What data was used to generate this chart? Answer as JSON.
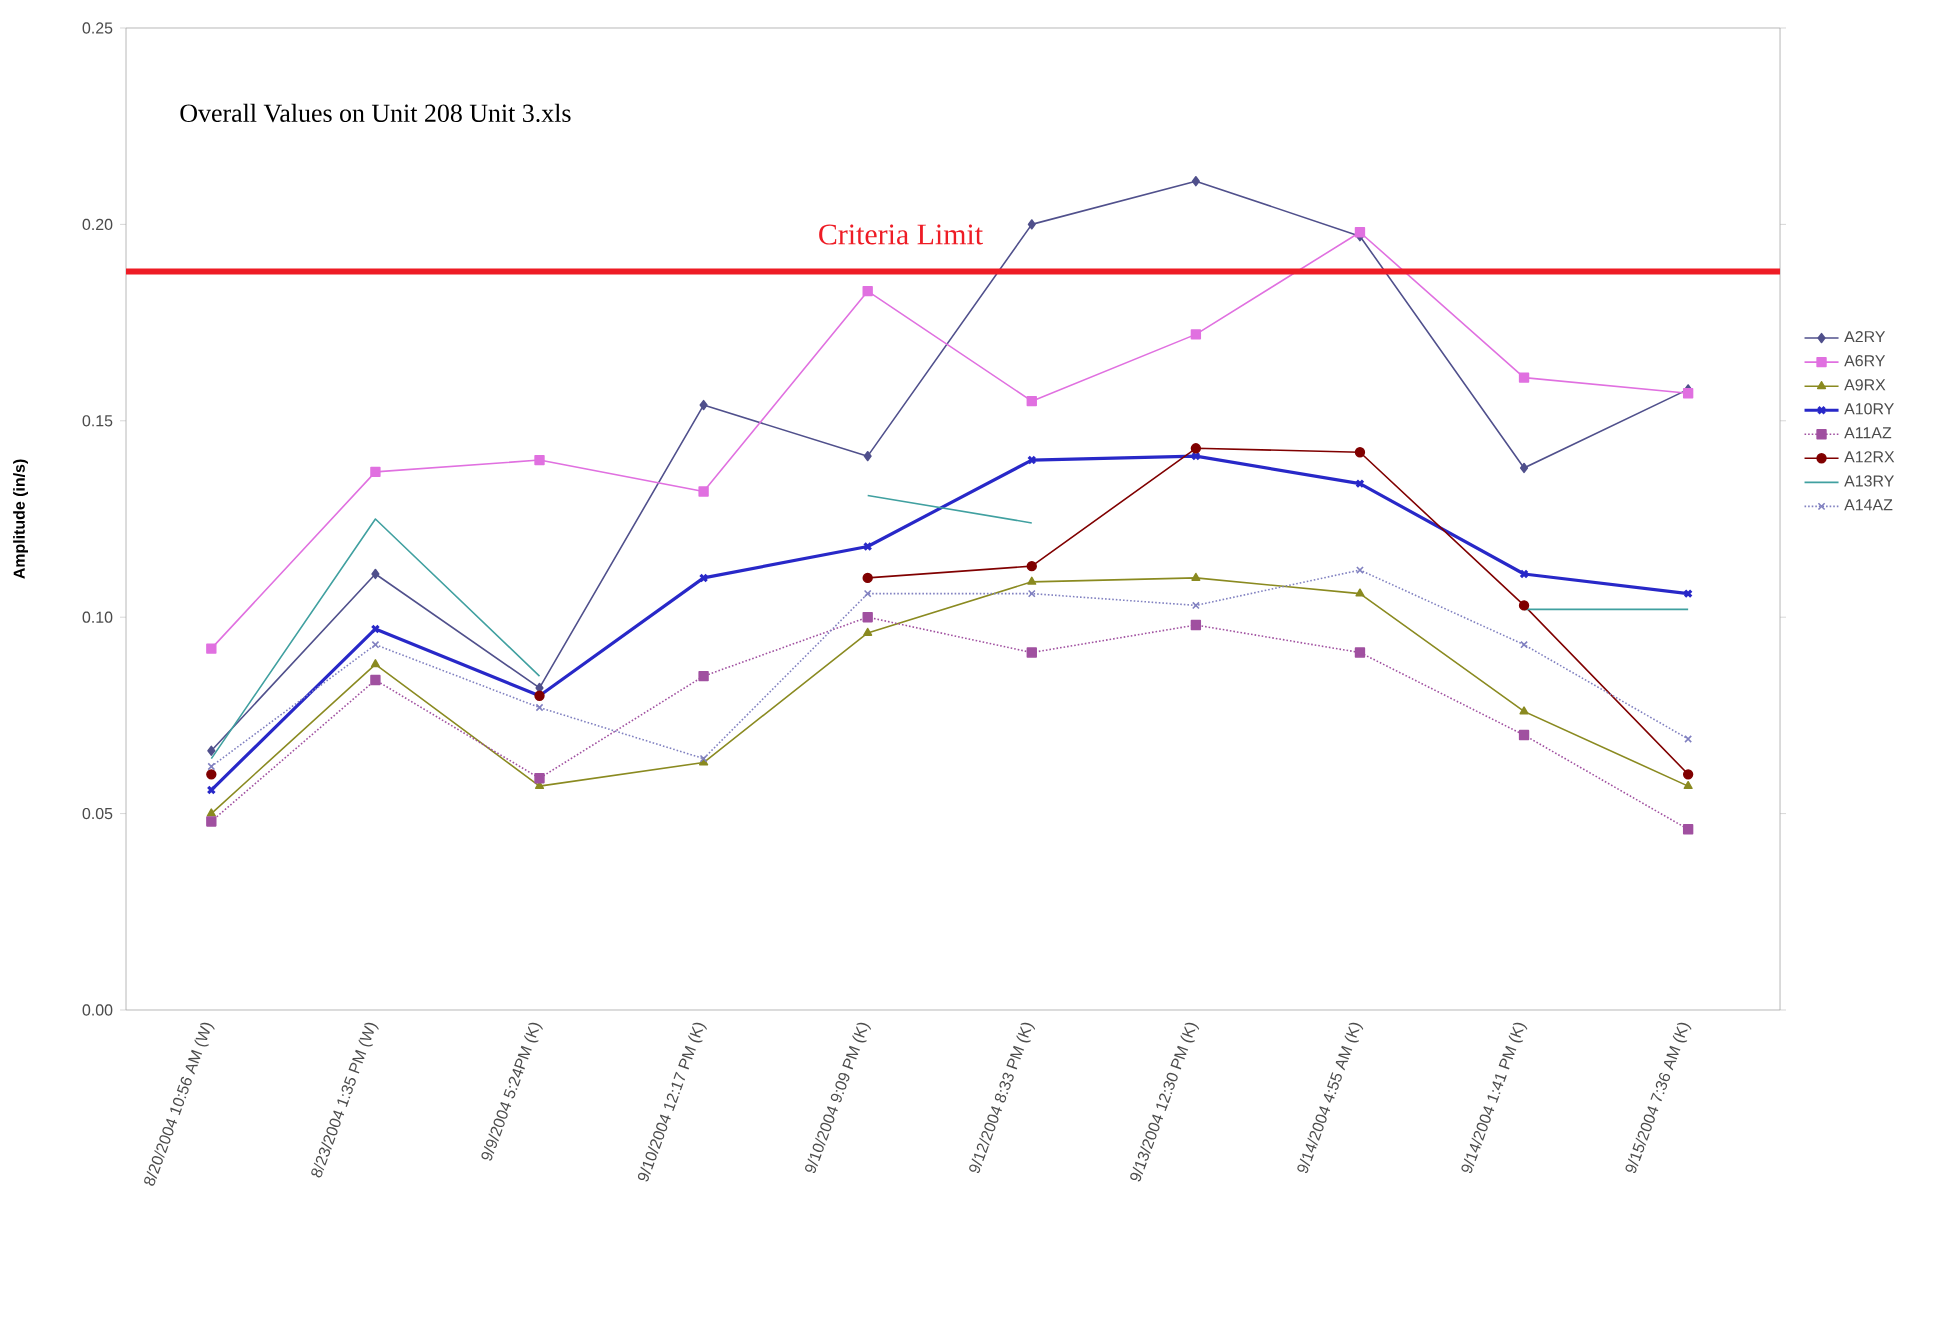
{
  "chart_data": {
    "type": "line",
    "title": "Overall Values on Unit 208 Unit 3.xls",
    "ylabel": "Amplitude (in/s)",
    "categories": [
      "8/20/2004  10:56 AM (W)",
      "8/23/2004  1:35 PM (W)",
      "9/9/2004 5:24PM (K)",
      "9/10/2004  12:17 PM (K)",
      "9/10/2004  9:09 PM (K)",
      "9/12/2004  8:33 PM (K)",
      "9/13/2004  12:30 PM (K)",
      "9/14/2004  4:55 AM (K)",
      "9/14/2004  1:41 PM (K)",
      "9/15/2004  7:36 AM (K)"
    ],
    "series": [
      {
        "name": "A2RY",
        "color": "#50508c",
        "marker": "diamond",
        "line_style": "solid",
        "values": [
          0.066,
          0.111,
          0.082,
          0.154,
          0.141,
          0.2,
          0.211,
          0.197,
          0.138,
          0.158
        ]
      },
      {
        "name": "A6RY",
        "color": "#e070e0",
        "marker": "square",
        "line_style": "solid",
        "values": [
          0.092,
          0.137,
          0.14,
          0.132,
          0.183,
          0.155,
          0.172,
          0.198,
          0.161,
          0.157
        ]
      },
      {
        "name": "A9RX",
        "color": "#8a8a20",
        "marker": "triangle",
        "line_style": "solid",
        "values": [
          0.05,
          0.088,
          0.057,
          0.063,
          0.096,
          0.109,
          0.11,
          0.106,
          0.076,
          0.057
        ]
      },
      {
        "name": "A10RY",
        "color": "#2828c8",
        "marker": "cross",
        "line_style": "solid",
        "values": [
          0.056,
          0.097,
          0.08,
          0.11,
          0.118,
          0.14,
          0.141,
          0.134,
          0.111,
          0.106
        ]
      },
      {
        "name": "A11AZ",
        "color": "#a050a0",
        "marker": "square",
        "line_style": "dotted",
        "values": [
          0.048,
          0.084,
          0.059,
          0.085,
          0.1,
          0.091,
          0.098,
          0.091,
          0.07,
          0.046
        ]
      },
      {
        "name": "A12RX",
        "color": "#800000",
        "marker": "circle",
        "line_style": "solid",
        "values": [
          0.06,
          null,
          0.08,
          null,
          0.11,
          0.113,
          0.143,
          0.142,
          0.103,
          0.06
        ]
      },
      {
        "name": "A13RY",
        "color": "#40a0a0",
        "marker": "none",
        "line_style": "solid",
        "values": [
          0.064,
          0.125,
          0.085,
          null,
          0.131,
          0.124,
          null,
          null,
          0.102,
          0.102
        ]
      },
      {
        "name": "A14AZ",
        "color": "#8080c0",
        "marker": "cross",
        "line_style": "dotted",
        "values": [
          0.062,
          0.093,
          0.077,
          0.064,
          0.106,
          0.106,
          0.103,
          0.112,
          0.093,
          0.069
        ]
      }
    ],
    "ylim": [
      0,
      0.25
    ],
    "yticks": [
      {
        "value": 0,
        "label": "0.00"
      },
      {
        "value": 0.05,
        "label": "0.05"
      },
      {
        "value": 0.1,
        "label": "0.10"
      },
      {
        "value": 0.15,
        "label": "0.15"
      },
      {
        "value": 0.2,
        "label": "0.20"
      },
      {
        "value": 0.25,
        "label": "0.25"
      }
    ],
    "ref_lines": [
      {
        "axis": "y",
        "value": 0.188,
        "label": "Criteria Limit",
        "color": "#ee1c25"
      }
    ],
    "legend": "right",
    "grid": false
  }
}
